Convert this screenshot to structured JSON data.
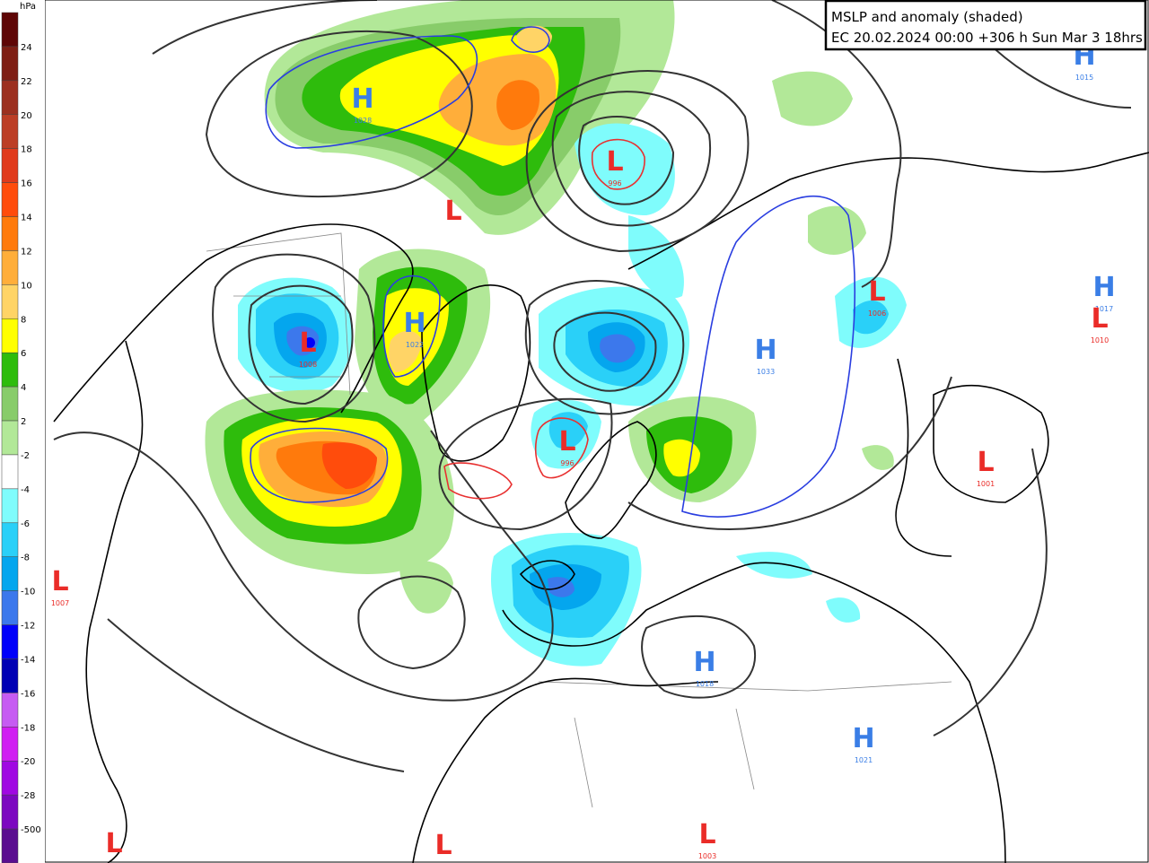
{
  "title": {
    "line1": "MSLP and anomaly (shaded)",
    "line2": "EC 20.02.2024 00:00 +306 h Sun Mar 3 18hrs"
  },
  "legend": {
    "unit": "hPa",
    "labels": [
      24,
      22,
      20,
      18,
      16,
      14,
      12,
      10,
      8,
      6,
      4,
      2,
      -2,
      -4,
      -6,
      -8,
      -10,
      -12,
      -14,
      -16,
      -18,
      -20,
      -28,
      -500
    ],
    "colors": [
      "#5e0606",
      "#7e1e14",
      "#9c3020",
      "#bc3e26",
      "#e03a1c",
      "#ff4c0c",
      "#ff7a0c",
      "#ffae3a",
      "#ffd466",
      "#ffff00",
      "#2ebc0c",
      "#88cc6a",
      "#b2e898",
      "#ffffff",
      "#7ffcfc",
      "#2ad0f8",
      "#04a6ee",
      "#3c78ec",
      "#0000fa",
      "#0000b4",
      "#c65cf2",
      "#d01ef2",
      "#a008e2",
      "#7c08c0",
      "#5a0e90"
    ]
  },
  "system_colors": {
    "H": "#3a7ee6",
    "L": "#ea2c28"
  },
  "systems": [
    {
      "letter": "H",
      "pressure": 1028
    },
    {
      "letter": "L"
    },
    {
      "letter": "H",
      "pressure": 1022
    },
    {
      "letter": "L",
      "pressure": 1008
    },
    {
      "letter": "L",
      "pressure": 996
    },
    {
      "letter": "L",
      "pressure": 996
    },
    {
      "letter": "H",
      "pressure": 1033
    },
    {
      "letter": "L",
      "pressure": 1006
    },
    {
      "letter": "H",
      "pressure": 1015
    },
    {
      "letter": "H",
      "pressure": 1017
    },
    {
      "letter": "L",
      "pressure": 1010
    },
    {
      "letter": "L",
      "pressure": 1001
    },
    {
      "letter": "L",
      "pressure": 1007
    },
    {
      "letter": "H",
      "pressure": 1018
    },
    {
      "letter": "H",
      "pressure": 1021
    },
    {
      "letter": "L",
      "pressure": 1003
    },
    {
      "letter": "L"
    },
    {
      "letter": "L"
    }
  ]
}
